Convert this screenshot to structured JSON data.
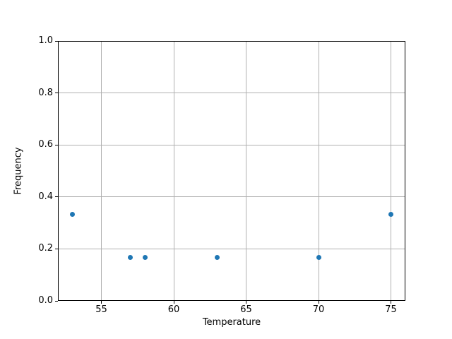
{
  "chart_data": {
    "type": "scatter",
    "xlabel": "Temperature",
    "ylabel": "Frequency",
    "xlim": [
      52.0,
      76.0
    ],
    "ylim": [
      0.0,
      1.0
    ],
    "grid": true,
    "legend": false,
    "x_ticks": [
      {
        "value": 55,
        "label": "55"
      },
      {
        "value": 60,
        "label": "60"
      },
      {
        "value": 65,
        "label": "65"
      },
      {
        "value": 70,
        "label": "70"
      },
      {
        "value": 75,
        "label": "75"
      }
    ],
    "y_ticks": [
      {
        "value": 0.0,
        "label": "0.0"
      },
      {
        "value": 0.2,
        "label": "0.2"
      },
      {
        "value": 0.4,
        "label": "0.4"
      },
      {
        "value": 0.6,
        "label": "0.6"
      },
      {
        "value": 0.8,
        "label": "0.8"
      },
      {
        "value": 1.0,
        "label": "1.0"
      }
    ],
    "points": [
      {
        "x": 53,
        "y": 0.333
      },
      {
        "x": 57,
        "y": 0.167
      },
      {
        "x": 58,
        "y": 0.167
      },
      {
        "x": 63,
        "y": 0.167
      },
      {
        "x": 70,
        "y": 0.167
      },
      {
        "x": 75,
        "y": 0.333
      }
    ],
    "colors": {
      "marker": "#1f77b4",
      "grid": "#b0b0b0",
      "spine": "#000000",
      "background": "#ffffff"
    }
  }
}
